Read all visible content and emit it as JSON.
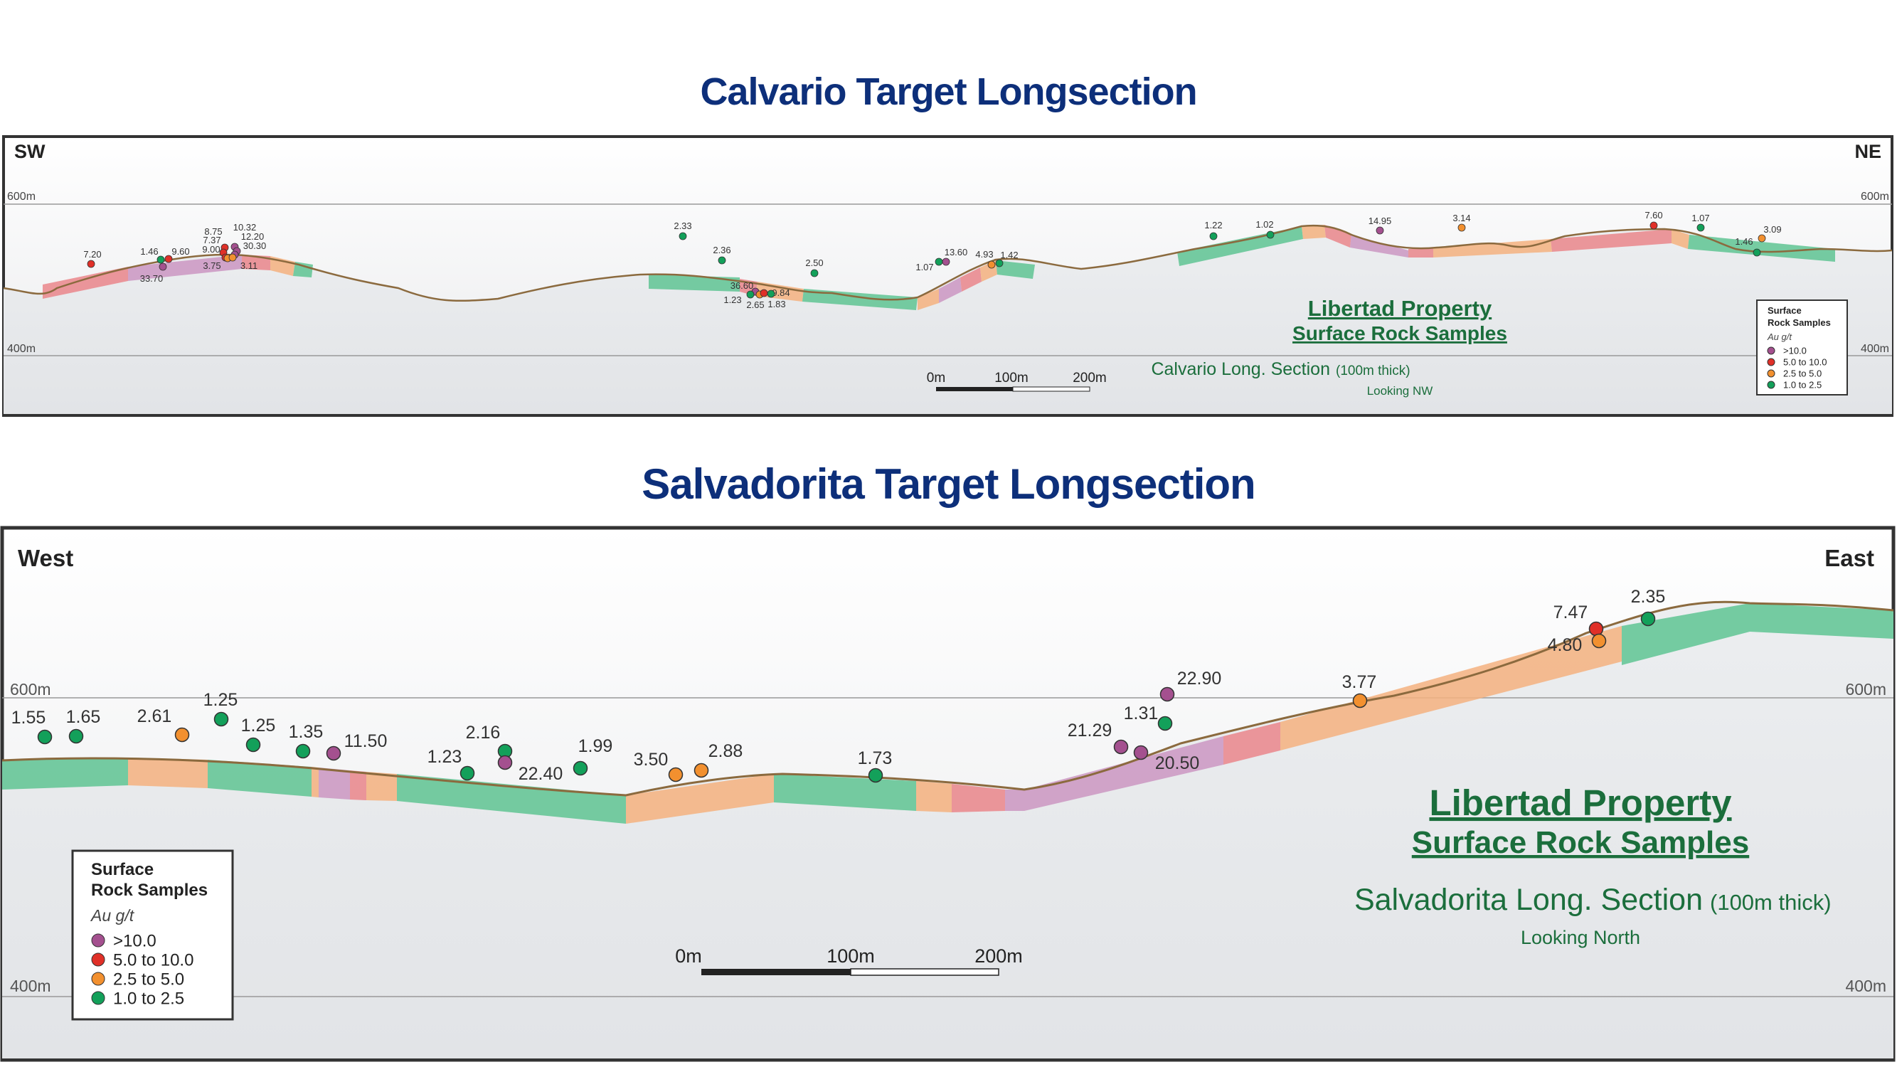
{
  "calvario": {
    "title": "Calvario Target Longsection",
    "dir_left": "SW",
    "dir_right": "NE",
    "elev_600": "600m",
    "elev_400": "400m",
    "property_line1": "Libertad Property",
    "property_line2": "Surface Rock Samples",
    "section_name": "Calvario Long. Section",
    "section_thick": "(100m thick)",
    "looking": "Looking NW",
    "scale": [
      "0m",
      "100m",
      "200m"
    ],
    "legend": {
      "title1": "Surface",
      "title2": "Rock Samples",
      "unit": "Au g/t",
      "items": [
        {
          "label": ">10.0",
          "color": "#a4508f"
        },
        {
          "label": "5.0 to 10.0",
          "color": "#e03028"
        },
        {
          "label": "2.5 to 5.0",
          "color": "#f2902f"
        },
        {
          "label": "1.0 to 2.5",
          "color": "#13a05a"
        }
      ]
    },
    "samples": [
      {
        "label": "7.20",
        "cls": "5.0 to 10.0"
      },
      {
        "label": "1.46",
        "cls": "1.0 to 2.5"
      },
      {
        "label": "9.60",
        "cls": "5.0 to 10.0"
      },
      {
        "label": "33.70",
        "cls": ">10.0"
      },
      {
        "label": "8.75",
        "cls": "5.0 to 10.0"
      },
      {
        "label": "7.37",
        "cls": "5.0 to 10.0"
      },
      {
        "label": "9.00",
        "cls": "5.0 to 10.0"
      },
      {
        "label": "3.75",
        "cls": "2.5 to 5.0"
      },
      {
        "label": "10.32",
        "cls": ">10.0"
      },
      {
        "label": "12.20",
        "cls": ">10.0"
      },
      {
        "label": "30.30",
        "cls": ">10.0"
      },
      {
        "label": "3.11",
        "cls": "2.5 to 5.0"
      },
      {
        "label": "2.33",
        "cls": "1.0 to 2.5"
      },
      {
        "label": "2.36",
        "cls": "1.0 to 2.5"
      },
      {
        "label": "36.60",
        "cls": ">10.0"
      },
      {
        "label": "1.23",
        "cls": "1.0 to 2.5"
      },
      {
        "label": "2.65",
        "cls": "2.5 to 5.0"
      },
      {
        "label": "9.84",
        "cls": "5.0 to 10.0"
      },
      {
        "label": "1.83",
        "cls": "1.0 to 2.5"
      },
      {
        "label": "2.50",
        "cls": "1.0 to 2.5"
      },
      {
        "label": "1.07",
        "cls": "1.0 to 2.5"
      },
      {
        "label": "13.60",
        "cls": ">10.0"
      },
      {
        "label": "4.93",
        "cls": "2.5 to 5.0"
      },
      {
        "label": "1.42",
        "cls": "1.0 to 2.5"
      },
      {
        "label": "1.22",
        "cls": "1.0 to 2.5"
      },
      {
        "label": "1.02",
        "cls": "1.0 to 2.5"
      },
      {
        "label": "14.95",
        "cls": ">10.0"
      },
      {
        "label": "3.14",
        "cls": "2.5 to 5.0"
      },
      {
        "label": "7.60",
        "cls": "5.0 to 10.0"
      },
      {
        "label": "1.07",
        "cls": "1.0 to 2.5"
      },
      {
        "label": "1.46",
        "cls": "1.0 to 2.5"
      },
      {
        "label": "3.09",
        "cls": "2.5 to 5.0"
      }
    ]
  },
  "salvadorita": {
    "title": "Salvadorita Target Longsection",
    "dir_left": "West",
    "dir_right": "East",
    "elev_600": "600m",
    "elev_400": "400m",
    "property_line1": "Libertad Property",
    "property_line2": "Surface Rock Samples",
    "section_name": "Salvadorita Long. Section",
    "section_thick": "(100m thick)",
    "looking": "Looking North",
    "scale": [
      "0m",
      "100m",
      "200m"
    ],
    "legend": {
      "title1": "Surface",
      "title2": "Rock Samples",
      "unit": "Au g/t",
      "items": [
        {
          "label": ">10.0",
          "color": "#a4508f"
        },
        {
          "label": "5.0 to 10.0",
          "color": "#e03028"
        },
        {
          "label": "2.5 to 5.0",
          "color": "#f2902f"
        },
        {
          "label": "1.0 to 2.5",
          "color": "#13a05a"
        }
      ]
    },
    "samples": [
      {
        "label": "1.55",
        "cls": "1.0 to 2.5"
      },
      {
        "label": "1.65",
        "cls": "1.0 to 2.5"
      },
      {
        "label": "2.61",
        "cls": "2.5 to 5.0"
      },
      {
        "label": "1.25",
        "cls": "1.0 to 2.5"
      },
      {
        "label": "1.25",
        "cls": "1.0 to 2.5"
      },
      {
        "label": "1.35",
        "cls": "1.0 to 2.5"
      },
      {
        "label": "11.50",
        "cls": ">10.0"
      },
      {
        "label": "1.23",
        "cls": "1.0 to 2.5"
      },
      {
        "label": "2.16",
        "cls": "1.0 to 2.5"
      },
      {
        "label": "22.40",
        "cls": ">10.0"
      },
      {
        "label": "1.99",
        "cls": "1.0 to 2.5"
      },
      {
        "label": "3.50",
        "cls": "2.5 to 5.0"
      },
      {
        "label": "2.88",
        "cls": "2.5 to 5.0"
      },
      {
        "label": "1.73",
        "cls": "1.0 to 2.5"
      },
      {
        "label": "21.29",
        "cls": ">10.0"
      },
      {
        "label": "20.50",
        "cls": ">10.0"
      },
      {
        "label": "1.31",
        "cls": "1.0 to 2.5"
      },
      {
        "label": "22.90",
        "cls": ">10.0"
      },
      {
        "label": "3.77",
        "cls": "2.5 to 5.0"
      },
      {
        "label": "7.47",
        "cls": "5.0 to 10.0"
      },
      {
        "label": "4.80",
        "cls": "2.5 to 5.0"
      },
      {
        "label": "2.35",
        "cls": "1.0 to 2.5"
      }
    ]
  }
}
